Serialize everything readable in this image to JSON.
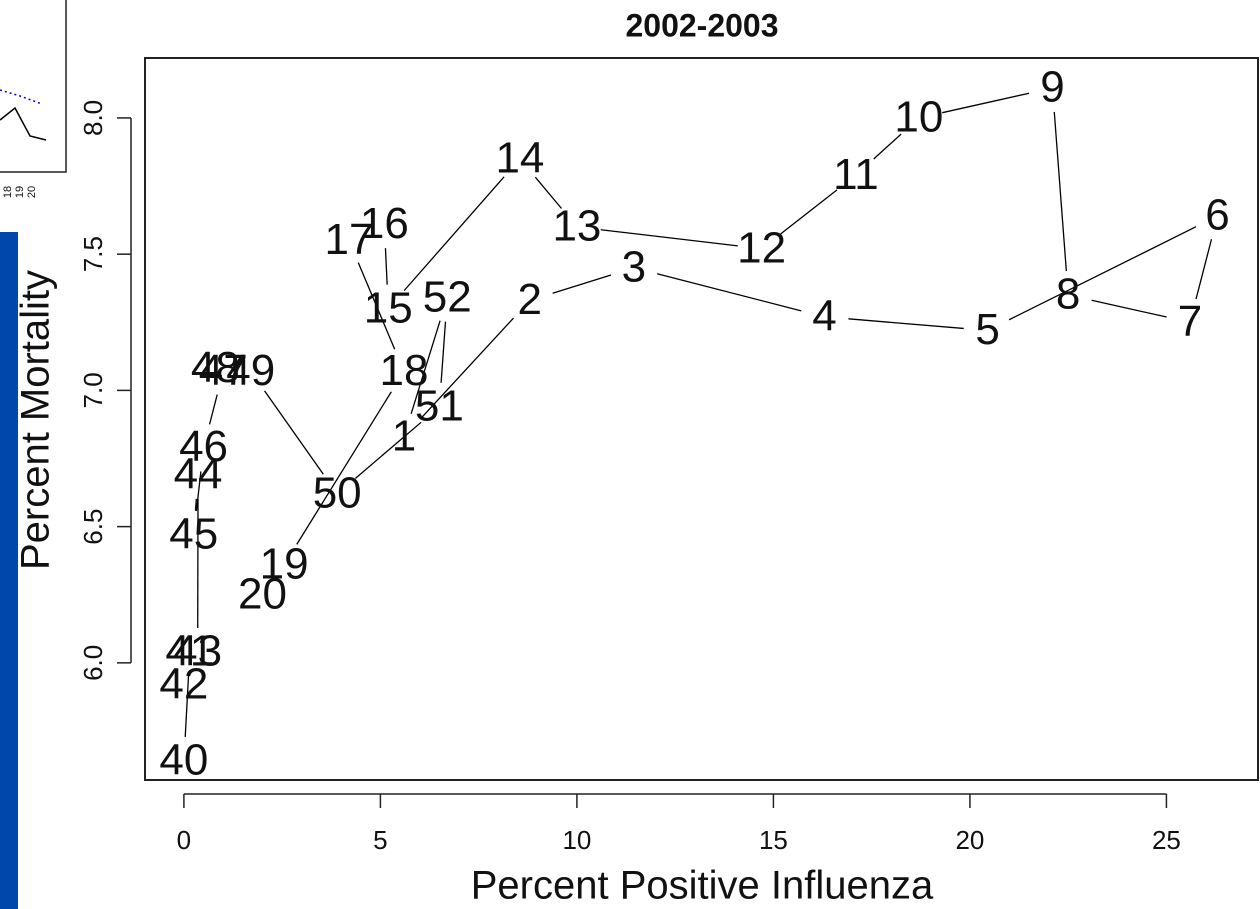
{
  "chart_data": {
    "type": "scatter",
    "title": "2002-2003",
    "x_label": "Percent Positive Influenza",
    "y_label": "Percent Mortality",
    "labels": [
      "40",
      "41",
      "42",
      "43",
      "44",
      "45",
      "46",
      "47",
      "48",
      "49",
      "50",
      "51",
      "52",
      "1",
      "2",
      "3",
      "4",
      "5",
      "6",
      "7",
      "8",
      "9",
      "10",
      "11",
      "12",
      "13",
      "14",
      "15",
      "16",
      "17",
      "18",
      "19",
      "20"
    ],
    "x": [
      0,
      0.15,
      0,
      0.35,
      0.36,
      0.25,
      0.5,
      1.0,
      0.8,
      1.7,
      3.9,
      6.5,
      6.7,
      5.6,
      8.8,
      11.45,
      16.3,
      20.45,
      26.3,
      25.6,
      22.5,
      22.1,
      18.7,
      17.1,
      14.7,
      10.0,
      8.55,
      5.2,
      5.1,
      4.2,
      5.6,
      2.55,
      2.0
    ],
    "y": [
      5.64,
      6.04,
      5.92,
      6.04,
      6.69,
      6.47,
      6.79,
      7.07,
      7.08,
      7.07,
      6.62,
      6.94,
      7.34,
      6.83,
      7.33,
      7.45,
      7.27,
      7.22,
      7.64,
      7.25,
      7.35,
      8.11,
      8.0,
      7.79,
      7.52,
      7.6,
      7.85,
      7.3,
      7.61,
      7.55,
      7.07,
      6.36,
      6.25
    ],
    "color": "#000000",
    "connect": true,
    "xlim": [
      -0.99,
      27.33
    ],
    "ylim": [
      5.57,
      8.22
    ],
    "xticks": [
      0,
      5,
      10,
      15,
      20,
      25
    ],
    "yticks": [
      {
        "value": 6,
        "label": "6.0"
      },
      {
        "value": 6.5,
        "label": "6.5"
      },
      {
        "value": 7,
        "label": "7.0"
      },
      {
        "value": 7.5,
        "label": "7.5"
      },
      {
        "value": 8,
        "label": "8.0"
      }
    ]
  },
  "inset": {
    "xtick_labels": [
      "18",
      "19",
      "20"
    ]
  }
}
